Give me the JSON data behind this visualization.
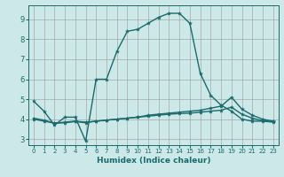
{
  "xlabel": "Humidex (Indice chaleur)",
  "background_color": "#cce8e8",
  "grid_color": "#999999",
  "line_color": "#1a6b6b",
  "xlim": [
    -0.5,
    23.5
  ],
  "ylim": [
    2.7,
    9.7
  ],
  "xticks": [
    0,
    1,
    2,
    3,
    4,
    5,
    6,
    7,
    8,
    9,
    10,
    11,
    12,
    13,
    14,
    15,
    16,
    17,
    18,
    19,
    20,
    21,
    22,
    23
  ],
  "yticks": [
    3,
    4,
    5,
    6,
    7,
    8,
    9
  ],
  "series1_x": [
    0,
    1,
    2,
    3,
    4,
    5,
    6,
    7,
    8,
    9,
    10,
    11,
    12,
    13,
    14,
    15,
    16,
    17,
    18,
    19,
    20,
    21,
    22,
    23
  ],
  "series1_y": [
    4.9,
    4.4,
    3.7,
    4.1,
    4.1,
    2.9,
    6.0,
    6.0,
    7.4,
    8.4,
    8.5,
    8.8,
    9.1,
    9.3,
    9.3,
    8.8,
    6.3,
    5.2,
    4.7,
    4.4,
    4.0,
    3.9,
    3.9,
    3.85
  ],
  "series2_x": [
    0,
    1,
    2,
    3,
    4,
    5,
    6,
    7,
    8,
    9,
    10,
    11,
    12,
    13,
    14,
    15,
    16,
    17,
    18,
    19,
    20,
    21,
    22,
    23
  ],
  "series2_y": [
    4.05,
    3.95,
    3.8,
    3.85,
    3.9,
    3.85,
    3.9,
    3.95,
    4.0,
    4.05,
    4.1,
    4.2,
    4.25,
    4.3,
    4.35,
    4.4,
    4.45,
    4.55,
    4.65,
    5.1,
    4.5,
    4.2,
    4.0,
    3.9
  ],
  "series3_x": [
    0,
    1,
    2,
    3,
    4,
    5,
    6,
    7,
    8,
    9,
    10,
    11,
    12,
    13,
    14,
    15,
    16,
    17,
    18,
    19,
    20,
    21,
    22,
    23
  ],
  "series3_y": [
    4.0,
    3.9,
    3.8,
    3.82,
    3.88,
    3.82,
    3.9,
    3.95,
    4.0,
    4.05,
    4.1,
    4.15,
    4.2,
    4.25,
    4.28,
    4.3,
    4.35,
    4.4,
    4.45,
    4.6,
    4.25,
    4.05,
    3.92,
    3.88
  ],
  "markersize": 3,
  "linewidth": 1.0
}
